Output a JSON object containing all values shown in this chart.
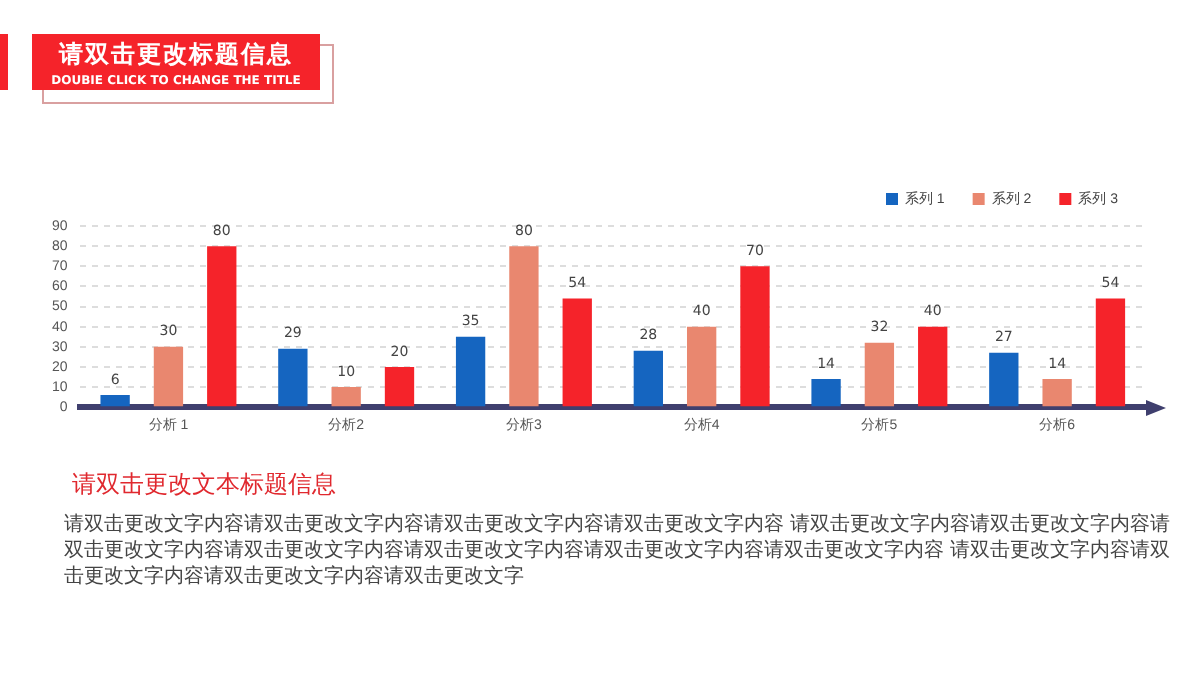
{
  "chart_data": {
    "type": "bar",
    "title": "请双击更改标题信息",
    "subtitle": "DOUBIE CLICK TO CHANGE THE TITLE",
    "categories": [
      "分析 1",
      "分析2",
      "分析3",
      "分析4",
      "分析5",
      "分析6"
    ],
    "series": [
      {
        "name": "系列 1",
        "color": "#1565c0",
        "values": [
          6,
          29,
          35,
          28,
          14,
          27
        ]
      },
      {
        "name": "系列 2",
        "color": "#e9876f",
        "values": [
          30,
          10,
          80,
          40,
          32,
          14
        ]
      },
      {
        "name": "系列 3",
        "color": "#f5232a",
        "values": [
          80,
          20,
          54,
          70,
          40,
          54
        ]
      }
    ],
    "ylim": [
      0,
      90
    ],
    "yticks": [
      0,
      10,
      20,
      30,
      40,
      50,
      60,
      70,
      80,
      90
    ],
    "grid": "y",
    "legend": "top right",
    "data_labels": true,
    "annotations": [
      "请双击更改文本标题信息",
      "请双击更改文字内容请双击更改文字内容请双击更改文字内容请双击更改文字内容 请双击更改文字内容请双击更改文字内容请双击更改文字内容请双击更改文字内容请双击更改文字内容请双击更改文字内容请双击更改文字内容 请双击更改文字内容请双击更改文字内容请双击更改文字内容请双击更改文字"
    ]
  }
}
